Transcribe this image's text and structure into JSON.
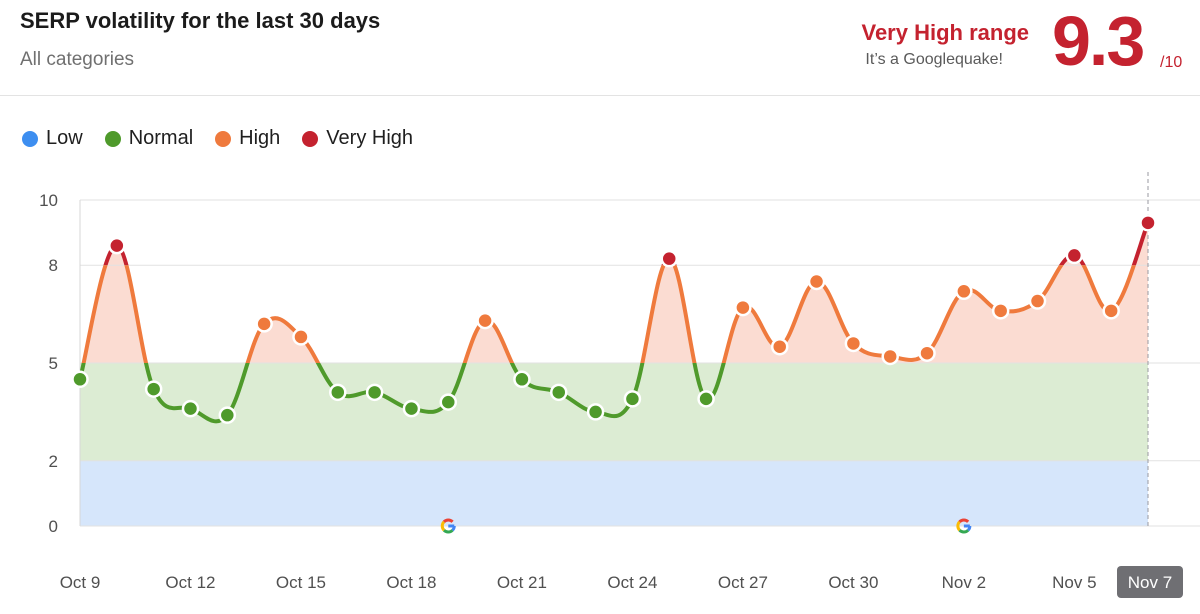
{
  "header": {
    "title": "SERP volatility for the last 30 days",
    "subtitle": "All categories",
    "range_label": "Very High range",
    "range_note": "It’s a Googlequake!",
    "score": "9.3",
    "score_max": "/10"
  },
  "legend": [
    {
      "label": "Low",
      "color": "#3d8ef0"
    },
    {
      "label": "Normal",
      "color": "#4f9a2b"
    },
    {
      "label": "High",
      "color": "#ef7a3d"
    },
    {
      "label": "Very High",
      "color": "#c4222f"
    }
  ],
  "colors": {
    "low_band": "#d6e6fb",
    "normal_band": "#dcecd3",
    "high_band": "#fbdcd2",
    "normal_line": "#4f9a2b",
    "high_line": "#ef7a3d",
    "very_high_line": "#c4222f",
    "grid": "#e2e2e2",
    "last_tag_bg": "#6f6f73"
  },
  "chart_data": {
    "type": "line",
    "title": "SERP volatility for the last 30 days",
    "subtitle": "All categories",
    "ylim": [
      0,
      10
    ],
    "y_ticks": [
      0,
      2,
      5,
      8,
      10
    ],
    "bands": [
      {
        "name": "Low",
        "from": 0,
        "to": 2
      },
      {
        "name": "Normal",
        "from": 2,
        "to": 5
      },
      {
        "name": "High",
        "from": 5,
        "to": 10
      }
    ],
    "x_tick_labels": [
      "Oct 9",
      "Oct 12",
      "Oct 15",
      "Oct 18",
      "Oct 21",
      "Oct 24",
      "Oct 27",
      "Oct 30",
      "Nov 2",
      "Nov 5",
      "Nov 7"
    ],
    "x_tick_indices": [
      0,
      3,
      6,
      9,
      12,
      15,
      18,
      21,
      24,
      27,
      29
    ],
    "highlighted_label": "Nov 7",
    "series": [
      {
        "name": "SERP volatility",
        "x": [
          "Oct 9",
          "Oct 10",
          "Oct 11",
          "Oct 12",
          "Oct 13",
          "Oct 14",
          "Oct 15",
          "Oct 16",
          "Oct 17",
          "Oct 18",
          "Oct 19",
          "Oct 20",
          "Oct 21",
          "Oct 22",
          "Oct 23",
          "Oct 24",
          "Oct 25",
          "Oct 26",
          "Oct 27",
          "Oct 28",
          "Oct 29",
          "Oct 30",
          "Oct 31",
          "Nov 1",
          "Nov 2",
          "Nov 3",
          "Nov 4",
          "Nov 5",
          "Nov 6",
          "Nov 7"
        ],
        "values": [
          4.5,
          8.6,
          4.2,
          3.6,
          3.4,
          6.2,
          5.8,
          4.1,
          4.1,
          3.6,
          3.8,
          6.3,
          4.5,
          4.1,
          3.5,
          3.9,
          8.2,
          3.9,
          6.7,
          5.5,
          7.5,
          5.6,
          5.2,
          5.3,
          7.2,
          6.6,
          6.9,
          8.3,
          6.6,
          9.3
        ]
      }
    ],
    "google_update_markers": [
      "Oct 19",
      "Nov 2"
    ]
  }
}
